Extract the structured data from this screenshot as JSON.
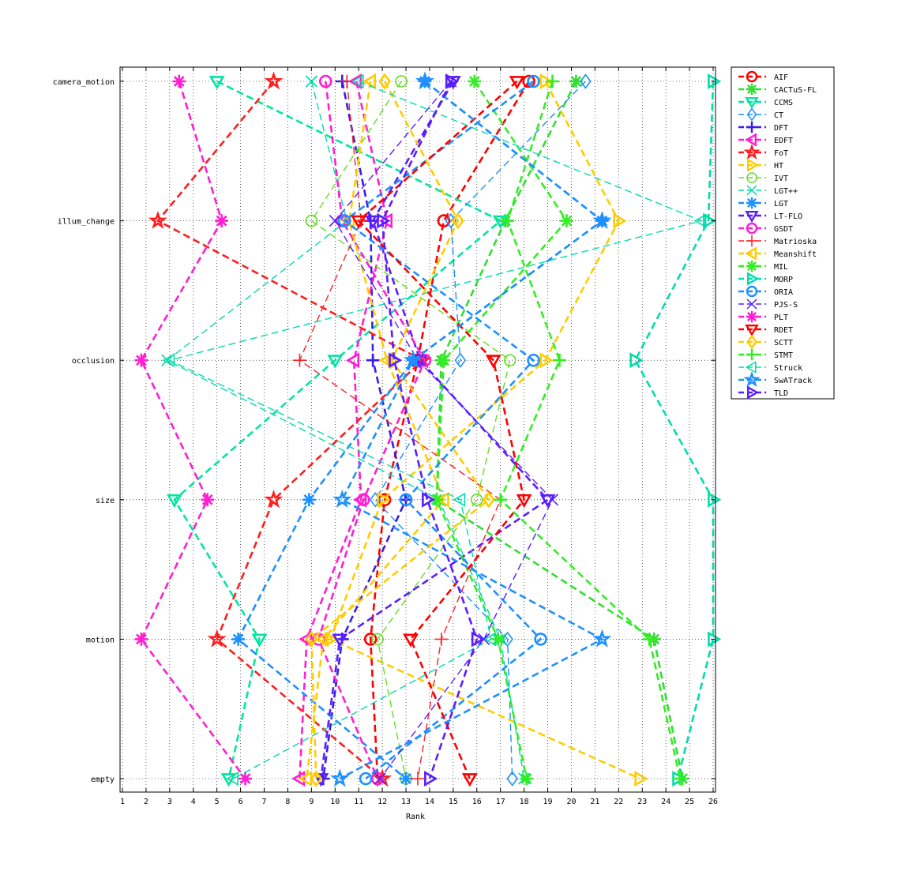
{
  "chart_data": {
    "type": "line",
    "xlabel": "Rank",
    "ylabel": "",
    "xlim": [
      1,
      26
    ],
    "x_ticks": [
      "1",
      "2",
      "3",
      "4",
      "5",
      "6",
      "7",
      "8",
      "9",
      "10",
      "11",
      "12",
      "13",
      "14",
      "15",
      "16",
      "17",
      "18",
      "19",
      "20",
      "21",
      "22",
      "23",
      "24",
      "25",
      "26"
    ],
    "categories": [
      "camera_motion",
      "illum_change",
      "occlusion",
      "size",
      "motion",
      "empty"
    ],
    "grid": true,
    "legend_position": "right-top, outside",
    "series": [
      {
        "name": "AIF",
        "color": "#ff0000",
        "marker": "o",
        "dash": "thick",
        "values": [
          18.2,
          14.6,
          13.5,
          12.1,
          11.5,
          11.8
        ]
      },
      {
        "name": "CACTuS-FL",
        "color": "#33dd33",
        "marker": "*",
        "dash": "thick",
        "values": [
          20.2,
          17.2,
          14.5,
          14.3,
          23.5,
          24.7
        ]
      },
      {
        "name": "CCMS",
        "color": "#00e6a0",
        "marker": "v",
        "dash": "thick",
        "values": [
          5.0,
          17.0,
          10.0,
          3.2,
          6.8,
          5.5
        ]
      },
      {
        "name": "CT",
        "color": "#1e90ff",
        "marker": "d",
        "dash": "thin",
        "values": [
          20.6,
          14.9,
          15.3,
          11.7,
          17.3,
          17.5
        ]
      },
      {
        "name": "DFT",
        "color": "#3a1ee6",
        "marker": "+",
        "dash": "thick",
        "values": [
          10.3,
          11.5,
          11.6,
          13.0,
          10.3,
          9.5
        ]
      },
      {
        "name": "EDFT",
        "color": "#ff1ed2",
        "marker": "<",
        "dash": "thick",
        "values": [
          10.9,
          12.2,
          10.8,
          11.1,
          8.8,
          8.5
        ]
      },
      {
        "name": "FoT",
        "color": "#ff1e1e",
        "marker": "p",
        "dash": "thick",
        "values": [
          7.4,
          2.5,
          13.7,
          7.4,
          5.0,
          12.0
        ]
      },
      {
        "name": "HT",
        "color": "#ffcc00",
        "marker": ">",
        "dash": "thick",
        "values": [
          18.9,
          22.0,
          18.9,
          12.0,
          9.8,
          22.9
        ]
      },
      {
        "name": "IVT",
        "color": "#66dd22",
        "marker": "o",
        "dash": "thin",
        "values": [
          12.8,
          9.0,
          17.4,
          16.0,
          11.8,
          13.0
        ]
      },
      {
        "name": "LGT++",
        "color": "#00ddaa",
        "marker": "x",
        "dash": "thin",
        "values": [
          9.0,
          10.5,
          2.9,
          14.4,
          17.0,
          18.0
        ]
      },
      {
        "name": "LGT",
        "color": "#1e90ff",
        "marker": "*",
        "dash": "thick",
        "values": [
          13.8,
          21.3,
          13.3,
          8.9,
          5.9,
          13.0
        ]
      },
      {
        "name": "LT-FLO",
        "color": "#5a1eff",
        "marker": "v",
        "dash": "thick",
        "values": [
          15.0,
          11.6,
          13.6,
          19.0,
          10.2,
          9.4
        ]
      },
      {
        "name": "GSDT",
        "color": "#ff1ed2",
        "marker": "o",
        "dash": "thick",
        "values": [
          9.6,
          10.3,
          13.8,
          11.2,
          9.3,
          11.8
        ]
      },
      {
        "name": "Matrioska",
        "color": "#ff2222",
        "marker": "+",
        "dash": "thin",
        "values": [
          10.5,
          11.1,
          8.5,
          17.0,
          14.5,
          13.5
        ]
      },
      {
        "name": "Meanshift",
        "color": "#ffcc00",
        "marker": "<",
        "dash": "thick",
        "values": [
          11.5,
          10.6,
          12.2,
          14.6,
          9.5,
          8.8
        ]
      },
      {
        "name": "MIL",
        "color": "#33ee22",
        "marker": "*",
        "dash": "thick",
        "values": [
          15.9,
          19.8,
          14.6,
          14.3,
          16.9,
          18.1
        ]
      },
      {
        "name": "MORP",
        "color": "#00ddaa",
        "marker": ">",
        "dash": "thick",
        "values": [
          26.0,
          25.8,
          22.7,
          26.0,
          26.0,
          24.5
        ]
      },
      {
        "name": "ORIA",
        "color": "#1e90ff",
        "marker": "o",
        "dash": "thick",
        "values": [
          18.4,
          10.4,
          18.4,
          13.0,
          18.7,
          11.3
        ]
      },
      {
        "name": "PJS-S",
        "color": "#5a1eff",
        "marker": "x",
        "dash": "thin",
        "values": [
          14.9,
          10.0,
          13.5,
          19.2,
          16.3,
          11.9
        ]
      },
      {
        "name": "PLT",
        "color": "#ff1ed2",
        "marker": "*",
        "dash": "thick",
        "values": [
          3.4,
          5.2,
          1.8,
          4.6,
          1.8,
          6.2
        ]
      },
      {
        "name": "RDET",
        "color": "#ff0000",
        "marker": "v",
        "dash": "thick",
        "values": [
          17.7,
          11.0,
          16.7,
          18.0,
          13.2,
          15.7
        ]
      },
      {
        "name": "SCTT",
        "color": "#ffcc00",
        "marker": "d",
        "dash": "thick",
        "values": [
          12.1,
          15.2,
          12.4,
          16.5,
          9.0,
          9.2
        ]
      },
      {
        "name": "STMT",
        "color": "#33ee22",
        "marker": "+",
        "dash": "thick",
        "values": [
          19.2,
          17.3,
          19.5,
          17.0,
          23.3,
          24.6
        ]
      },
      {
        "name": "Struck",
        "color": "#00ddaa",
        "marker": "<",
        "dash": "thin",
        "values": [
          11.0,
          25.5,
          3.0,
          15.3,
          16.6,
          5.7
        ]
      },
      {
        "name": "SwATrack",
        "color": "#1e90ff",
        "marker": "p",
        "dash": "thick",
        "values": [
          13.8,
          21.3,
          13.3,
          10.3,
          21.3,
          10.2
        ]
      },
      {
        "name": "TLD",
        "color": "#5a1eff",
        "marker": ">",
        "dash": "thick",
        "values": [
          14.9,
          12.0,
          12.5,
          13.9,
          16.0,
          14.0
        ]
      }
    ]
  }
}
